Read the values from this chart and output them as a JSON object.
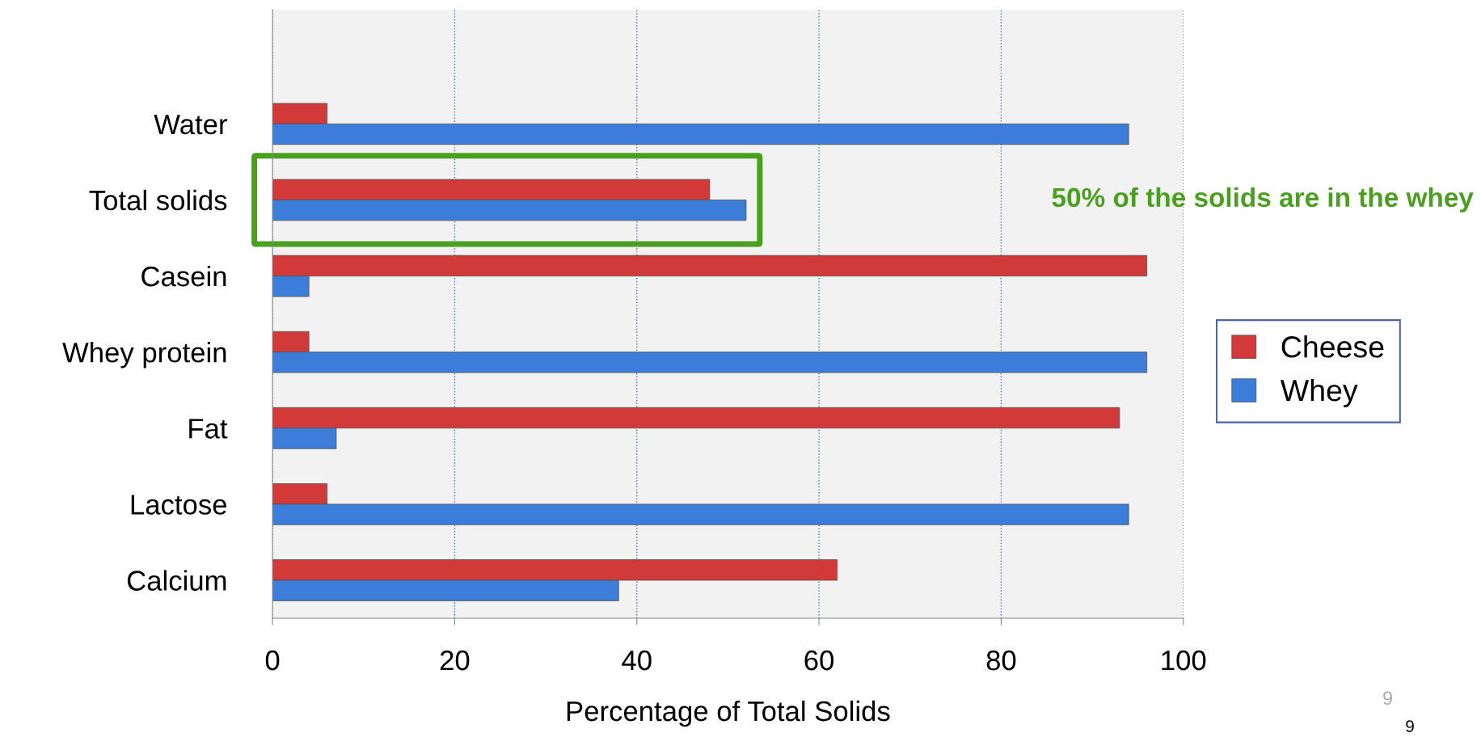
{
  "chart_data": {
    "type": "bar",
    "orientation": "horizontal",
    "xlabel": "Percentage of Total Solids",
    "categories": [
      "Water",
      "Total solids",
      "Casein",
      "Whey protein",
      "Fat",
      "Lactose",
      "Calcium"
    ],
    "series": [
      {
        "name": "Cheese",
        "color": "#d23a3a",
        "values": [
          6,
          48,
          96,
          4,
          93,
          6,
          62
        ]
      },
      {
        "name": "Whey",
        "color": "#3b7dd8",
        "values": [
          94,
          52,
          4,
          96,
          7,
          94,
          38
        ]
      }
    ],
    "xlim": [
      0,
      100
    ],
    "xticks": [
      0,
      20,
      40,
      60,
      80,
      100
    ],
    "grid": "x",
    "legend": "right",
    "annotations": [
      "50% of the solids are in the whey",
      "9",
      "9"
    ]
  }
}
